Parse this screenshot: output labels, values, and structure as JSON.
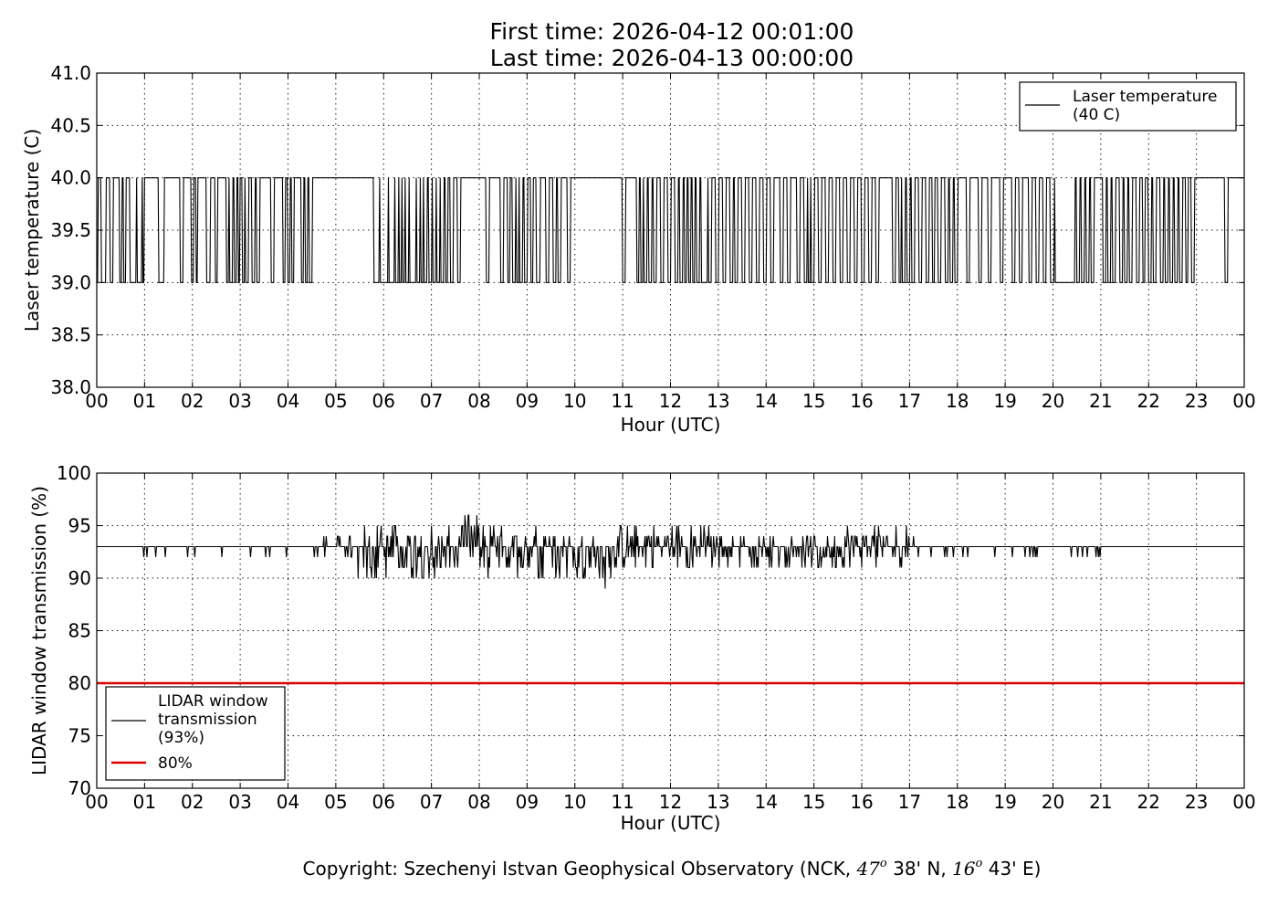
{
  "title": {
    "line1": "First time: 2026-04-12 00:01:00",
    "line2": "Last time: 2026-04-13 00:00:00"
  },
  "copyright": "Copyright: Szechenyi Istvan Geophysical Observatory (NCK, 47° 38' N, 16° 43' E)",
  "copyright_parts": {
    "prefix": "Copyright: Szechenyi Istvan Geophysical Observatory (NCK, ",
    "lat_deg": "47",
    "deg_sup": "o",
    "lat_min": " 38' N, ",
    "lon_deg": "16",
    "lon_min": " 43' E)"
  },
  "chart_data": [
    {
      "type": "line",
      "xlabel": "Hour (UTC)",
      "ylabel": "Laser temperature (C)",
      "xlim": [
        0,
        24
      ],
      "ylim": [
        38.0,
        41.0
      ],
      "x_tick_labels": [
        "00",
        "01",
        "02",
        "03",
        "04",
        "05",
        "06",
        "07",
        "08",
        "09",
        "10",
        "11",
        "12",
        "13",
        "14",
        "15",
        "16",
        "17",
        "18",
        "19",
        "20",
        "21",
        "22",
        "23",
        "00"
      ],
      "y_ticks": [
        38.0,
        38.5,
        39.0,
        39.5,
        40.0,
        40.5,
        41.0
      ],
      "y_tick_labels": [
        "38.0",
        "38.5",
        "39.0",
        "39.5",
        "40.0",
        "40.5",
        "41.0"
      ],
      "grid": true,
      "legend_position": "top-right",
      "series": [
        {
          "name": "Laser temperature\n(40 C)",
          "color": "#000000",
          "sample_interval_minutes": 1,
          "baseline": 40.0,
          "alternate_value": 39.0,
          "segments_at_39": [
            [
              0.0,
              0.02
            ],
            [
              0.1,
              0.18
            ],
            [
              0.29,
              0.33
            ],
            [
              0.49,
              0.51
            ],
            [
              0.56,
              0.6
            ],
            [
              0.7,
              0.73
            ],
            [
              0.75,
              0.78
            ],
            [
              0.79,
              0.82
            ],
            [
              0.85,
              0.88
            ],
            [
              0.9,
              0.93
            ],
            [
              0.96,
              0.98
            ],
            [
              1.3,
              1.36
            ],
            [
              1.38,
              1.4
            ],
            [
              1.75,
              1.8
            ],
            [
              1.98,
              2.02
            ],
            [
              2.08,
              2.1
            ],
            [
              2.3,
              2.36
            ],
            [
              2.48,
              2.52
            ],
            [
              2.72,
              2.75
            ],
            [
              2.78,
              2.83
            ],
            [
              2.88,
              2.92
            ],
            [
              2.96,
              2.99
            ],
            [
              3.05,
              3.09
            ],
            [
              3.12,
              3.16
            ],
            [
              3.25,
              3.3
            ],
            [
              3.35,
              3.4
            ],
            [
              3.65,
              3.7
            ],
            [
              3.9,
              3.94
            ],
            [
              4.0,
              4.04
            ],
            [
              4.08,
              4.12
            ],
            [
              4.28,
              4.32
            ],
            [
              4.36,
              4.4
            ],
            [
              4.45,
              4.5
            ],
            [
              5.8,
              5.85
            ],
            [
              5.87,
              5.9
            ],
            [
              5.93,
              5.98
            ],
            [
              6.0,
              6.03
            ],
            [
              6.05,
              6.09
            ],
            [
              6.12,
              6.16
            ],
            [
              6.18,
              6.22
            ],
            [
              6.25,
              6.3
            ],
            [
              6.33,
              6.37
            ],
            [
              6.4,
              6.44
            ],
            [
              6.47,
              6.51
            ],
            [
              6.55,
              6.6
            ],
            [
              6.62,
              6.66
            ],
            [
              6.7,
              6.75
            ],
            [
              6.78,
              6.82
            ],
            [
              6.85,
              6.9
            ],
            [
              6.95,
              7.0
            ],
            [
              7.04,
              7.08
            ],
            [
              7.12,
              7.16
            ],
            [
              7.2,
              7.25
            ],
            [
              7.3,
              7.34
            ],
            [
              7.4,
              7.45
            ],
            [
              7.55,
              7.6
            ],
            [
              8.15,
              8.2
            ],
            [
              8.45,
              8.5
            ],
            [
              8.6,
              8.64
            ],
            [
              8.7,
              8.75
            ],
            [
              8.78,
              8.82
            ],
            [
              8.85,
              8.9
            ],
            [
              8.95,
              9.0
            ],
            [
              9.08,
              9.12
            ],
            [
              9.2,
              9.26
            ],
            [
              9.4,
              9.45
            ],
            [
              9.55,
              9.6
            ],
            [
              9.65,
              9.7
            ],
            [
              9.85,
              9.9
            ],
            [
              11.0,
              11.05
            ],
            [
              11.3,
              11.34
            ],
            [
              11.38,
              11.42
            ],
            [
              11.45,
              11.5
            ],
            [
              11.55,
              11.6
            ],
            [
              11.65,
              11.7
            ],
            [
              11.8,
              11.85
            ],
            [
              11.95,
              12.0
            ],
            [
              12.1,
              12.15
            ],
            [
              12.2,
              12.25
            ],
            [
              12.3,
              12.34
            ],
            [
              12.38,
              12.42
            ],
            [
              12.46,
              12.5
            ],
            [
              12.55,
              12.6
            ],
            [
              12.65,
              12.7
            ],
            [
              12.72,
              12.76
            ],
            [
              12.8,
              12.85
            ],
            [
              12.95,
              13.0
            ],
            [
              13.1,
              13.15
            ],
            [
              13.25,
              13.3
            ],
            [
              13.35,
              13.4
            ],
            [
              13.5,
              13.55
            ],
            [
              13.65,
              13.7
            ],
            [
              13.8,
              13.85
            ],
            [
              13.95,
              14.0
            ],
            [
              14.1,
              14.15
            ],
            [
              14.3,
              14.35
            ],
            [
              14.45,
              14.5
            ],
            [
              14.65,
              14.7
            ],
            [
              14.8,
              14.85
            ],
            [
              14.88,
              14.92
            ],
            [
              14.95,
              15.0
            ],
            [
              15.1,
              15.15
            ],
            [
              15.25,
              15.3
            ],
            [
              15.4,
              15.45
            ],
            [
              15.55,
              15.6
            ],
            [
              15.7,
              15.75
            ],
            [
              15.85,
              15.9
            ],
            [
              16.0,
              16.05
            ],
            [
              16.15,
              16.2
            ],
            [
              16.3,
              16.35
            ],
            [
              16.65,
              16.7
            ],
            [
              16.78,
              16.82
            ],
            [
              16.85,
              16.9
            ],
            [
              16.95,
              17.0
            ],
            [
              17.05,
              17.1
            ],
            [
              17.2,
              17.25
            ],
            [
              17.35,
              17.4
            ],
            [
              17.48,
              17.52
            ],
            [
              17.6,
              17.65
            ],
            [
              17.75,
              17.8
            ],
            [
              17.85,
              17.9
            ],
            [
              17.95,
              18.0
            ],
            [
              18.2,
              18.25
            ],
            [
              18.45,
              18.5
            ],
            [
              18.65,
              18.7
            ],
            [
              18.9,
              18.95
            ],
            [
              19.15,
              19.2
            ],
            [
              19.3,
              19.35
            ],
            [
              19.5,
              19.55
            ],
            [
              19.65,
              19.7
            ],
            [
              19.8,
              19.85
            ],
            [
              19.95,
              20.02
            ],
            [
              20.05,
              20.45
            ],
            [
              20.5,
              20.55
            ],
            [
              20.6,
              20.65
            ],
            [
              20.7,
              20.75
            ],
            [
              20.8,
              20.85
            ],
            [
              21.05,
              21.1
            ],
            [
              21.15,
              21.2
            ],
            [
              21.25,
              21.3
            ],
            [
              21.4,
              21.45
            ],
            [
              21.5,
              21.55
            ],
            [
              21.6,
              21.65
            ],
            [
              21.75,
              21.8
            ],
            [
              21.88,
              21.92
            ],
            [
              22.0,
              22.05
            ],
            [
              22.1,
              22.15
            ],
            [
              22.25,
              22.3
            ],
            [
              22.35,
              22.4
            ],
            [
              22.45,
              22.5
            ],
            [
              22.55,
              22.6
            ],
            [
              22.65,
              22.7
            ],
            [
              22.78,
              22.82
            ],
            [
              22.9,
              22.95
            ],
            [
              23.6,
              23.65
            ]
          ]
        }
      ]
    },
    {
      "type": "line",
      "xlabel": "Hour (UTC)",
      "ylabel": "LIDAR window transmission (%)",
      "xlim": [
        0,
        24
      ],
      "ylim": [
        70,
        100
      ],
      "x_tick_labels": [
        "00",
        "01",
        "02",
        "03",
        "04",
        "05",
        "06",
        "07",
        "08",
        "09",
        "10",
        "11",
        "12",
        "13",
        "14",
        "15",
        "16",
        "17",
        "18",
        "19",
        "20",
        "21",
        "22",
        "23",
        "00"
      ],
      "y_ticks": [
        70,
        75,
        80,
        85,
        90,
        95,
        100
      ],
      "y_tick_labels": [
        "70",
        "75",
        "80",
        "85",
        "90",
        "95",
        "100"
      ],
      "grid": true,
      "legend_position": "bottom-left",
      "series": [
        {
          "name": "LIDAR window\ntransmission\n(93%)",
          "color": "#000000",
          "sample_interval_minutes": 1,
          "baseline": 93,
          "noisy_periods": [
            {
              "start": 0.0,
              "end": 4.6,
              "min": 92,
              "max": 93,
              "notes": "occasional single dips to 92"
            },
            {
              "start": 4.6,
              "end": 5.4,
              "min": 92,
              "max": 94
            },
            {
              "start": 5.4,
              "end": 7.6,
              "min": 90,
              "max": 95
            },
            {
              "start": 7.6,
              "end": 8.0,
              "min": 91,
              "max": 96
            },
            {
              "start": 8.0,
              "end": 9.8,
              "min": 90,
              "max": 95
            },
            {
              "start": 9.8,
              "end": 10.8,
              "min": 89,
              "max": 94
            },
            {
              "start": 10.8,
              "end": 13.0,
              "min": 91,
              "max": 95
            },
            {
              "start": 13.0,
              "end": 15.6,
              "min": 91,
              "max": 94
            },
            {
              "start": 15.6,
              "end": 17.1,
              "min": 91,
              "max": 95
            },
            {
              "start": 17.1,
              "end": 20.1,
              "min": 92,
              "max": 93
            },
            {
              "start": 20.1,
              "end": 21.1,
              "min": 92,
              "max": 93
            },
            {
              "start": 21.1,
              "end": 24.0,
              "min": 93,
              "max": 93
            }
          ]
        },
        {
          "name": "80%",
          "color": "#dd0000",
          "constant": 80
        }
      ]
    }
  ]
}
